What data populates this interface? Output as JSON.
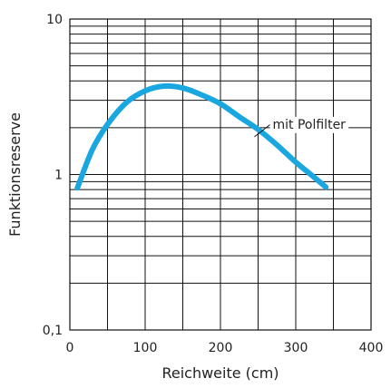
{
  "chart_data": {
    "type": "line",
    "xlabel": "Reichweite (cm)",
    "ylabel": "Funktionsreserve",
    "xlim": [
      0,
      400
    ],
    "ylim": [
      0.1,
      10
    ],
    "yscale": "log",
    "grid": true,
    "x_ticks": [
      0,
      100,
      200,
      300,
      400
    ],
    "x_tick_labels": [
      "0",
      "100",
      "200",
      "300",
      "400"
    ],
    "y_ticks": [
      0.1,
      1,
      10
    ],
    "y_tick_labels": [
      "0,1",
      "1",
      "10"
    ],
    "line_color": "#1aa7e0",
    "series": [
      {
        "name": "mit Polfilter",
        "x": [
          10,
          30,
          50,
          75,
          100,
          125,
          150,
          175,
          200,
          225,
          250,
          275,
          300,
          320,
          340
        ],
        "y": [
          0.82,
          1.45,
          2.1,
          2.9,
          3.45,
          3.7,
          3.6,
          3.25,
          2.85,
          2.35,
          1.95,
          1.55,
          1.2,
          1.0,
          0.83
        ]
      }
    ],
    "annotations": [
      {
        "text": "mit Polfilter",
        "x": 250,
        "y": 2.0
      }
    ]
  }
}
